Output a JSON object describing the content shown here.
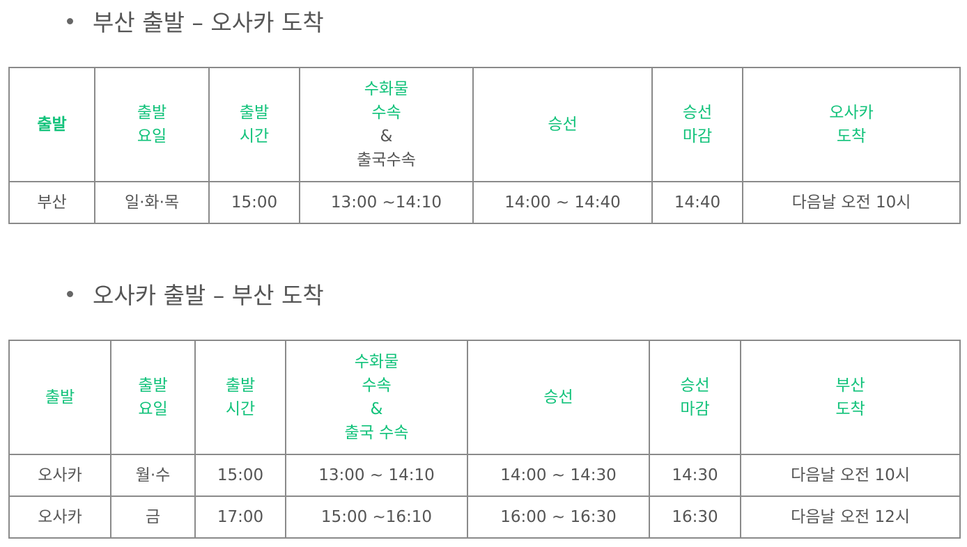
{
  "section1": {
    "heading": "부산 출발 – 오사카 도착",
    "headers": [
      {
        "lines": [
          "출발"
        ]
      },
      {
        "lines": [
          "출발",
          "요일"
        ]
      },
      {
        "lines": [
          "출발",
          "시간"
        ]
      },
      {
        "lines": [
          "수화물",
          "수속",
          "&",
          "출국수속"
        ]
      },
      {
        "lines": [
          "승선"
        ]
      },
      {
        "lines": [
          "승선",
          "마감"
        ]
      },
      {
        "lines": [
          "오사카",
          "도착"
        ]
      }
    ],
    "rows": [
      [
        "부산",
        "일·화·목",
        "15:00",
        "13:00 ~14:10",
        "14:00 ~ 14:40",
        "14:40",
        "다음날 오전 10시"
      ]
    ]
  },
  "section2": {
    "heading": "오사카 출발 – 부산 도착",
    "headers": [
      {
        "lines": [
          "출발"
        ]
      },
      {
        "lines": [
          "출발",
          "요일"
        ]
      },
      {
        "lines": [
          "출발",
          "시간"
        ]
      },
      {
        "lines": [
          "수화물",
          "수속",
          "&",
          "출국 수속"
        ]
      },
      {
        "lines": [
          "승선"
        ]
      },
      {
        "lines": [
          "승선",
          "마감"
        ]
      },
      {
        "lines": [
          "부산",
          "도착"
        ]
      }
    ],
    "rows": [
      [
        "오사카",
        "월·수",
        "15:00",
        "13:00 ~ 14:10",
        "14:00 ~ 14:30",
        "14:30",
        "다음날 오전 10시"
      ],
      [
        "오사카",
        "금",
        "17:00",
        "15:00 ~16:10",
        "16:00 ~ 16:30",
        "16:30",
        "다음날 오전 12시"
      ]
    ]
  },
  "colors": {
    "header_text": "#11c27a",
    "body_text": "#555555",
    "border": "#8a8a8a"
  }
}
